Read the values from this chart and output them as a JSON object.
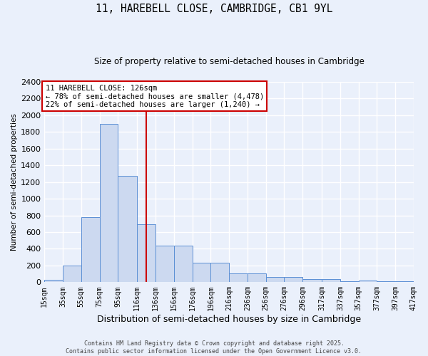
{
  "title_line1": "11, HAREBELL CLOSE, CAMBRIDGE, CB1 9YL",
  "title_line2": "Size of property relative to semi-detached houses in Cambridge",
  "xlabel": "Distribution of semi-detached houses by size in Cambridge",
  "ylabel": "Number of semi-detached properties",
  "bar_color": "#ccd9f0",
  "bar_edge_color": "#5b8fd4",
  "background_color": "#eaf0fb",
  "grid_color": "white",
  "vline_color": "#cc0000",
  "vline_x": 126,
  "annotation_text": "11 HAREBELL CLOSE: 126sqm\n← 78% of semi-detached houses are smaller (4,478)\n22% of semi-detached houses are larger (1,240) →",
  "bin_edges": [
    15,
    35,
    55,
    75,
    95,
    116,
    136,
    156,
    176,
    196,
    216,
    236,
    256,
    276,
    296,
    317,
    337,
    357,
    377,
    397,
    417
  ],
  "bar_heights": [
    25,
    200,
    775,
    1900,
    1275,
    690,
    435,
    435,
    230,
    230,
    105,
    105,
    60,
    60,
    35,
    35,
    15,
    20,
    15,
    15
  ],
  "ylim": [
    0,
    2400
  ],
  "yticks": [
    0,
    200,
    400,
    600,
    800,
    1000,
    1200,
    1400,
    1600,
    1800,
    2000,
    2200,
    2400
  ],
  "footnote_line1": "Contains HM Land Registry data © Crown copyright and database right 2025.",
  "footnote_line2": "Contains public sector information licensed under the Open Government Licence v3.0.",
  "figsize": [
    6.0,
    5.0
  ],
  "dpi": 100
}
